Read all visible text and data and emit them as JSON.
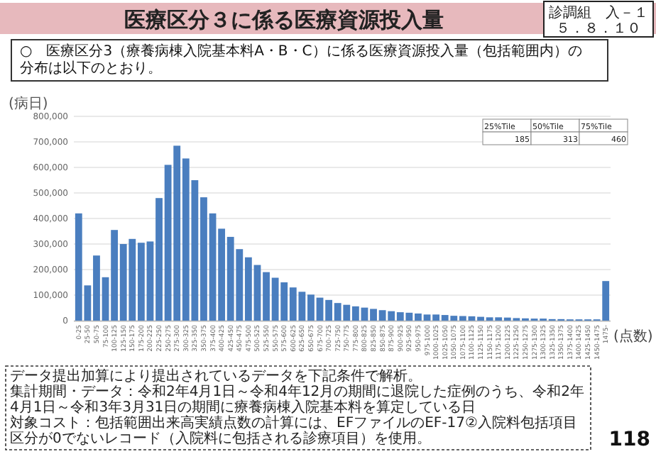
{
  "chart_data": {
    "type": "bar",
    "title": "医療区分３に係る医療資源投入量",
    "subtitle": "○　医療区分3（療養病棟入院基本料A・B・C）に係る医療資源投入量（包括範囲内）の分布は以下のとおり。",
    "ylabel": "(病日)",
    "xlabel": "(点数)",
    "categories": [
      "0-25",
      "25-50",
      "50-75",
      "75-100",
      "100-125",
      "125-150",
      "150-175",
      "175-200",
      "200-225",
      "225-250",
      "250-275",
      "275-300",
      "300-325",
      "325-350",
      "350-375",
      "375-400",
      "400-425",
      "425-450",
      "450-475",
      "475-500",
      "500-525",
      "525-550",
      "550-575",
      "575-600",
      "600-625",
      "625-650",
      "650-675",
      "675-700",
      "700-725",
      "725-750",
      "750-775",
      "775-800",
      "800-825",
      "825-850",
      "850-875",
      "875-900",
      "900-925",
      "925-950",
      "950-975",
      "975-1000",
      "1000-1025",
      "1025-1050",
      "1050-1075",
      "1075-1100",
      "1100-1125",
      "1125-1150",
      "1150-1175",
      "1175-1200",
      "1200-1225",
      "1225-1250",
      "1250-1275",
      "1275-1300",
      "1300-1325",
      "1325-1350",
      "1350-1375",
      "1375-1400",
      "1400-1425",
      "1425-1450",
      "1450-1475",
      "1475-"
    ],
    "values": [
      420000,
      138000,
      255000,
      170000,
      355000,
      300000,
      320000,
      305000,
      310000,
      480000,
      610000,
      685000,
      635000,
      550000,
      483000,
      420000,
      360000,
      328000,
      280000,
      248000,
      218000,
      190000,
      168000,
      150000,
      130000,
      113000,
      102000,
      90000,
      81000,
      69000,
      62000,
      56000,
      51000,
      46000,
      41000,
      37000,
      33000,
      31000,
      28000,
      24000,
      24000,
      22000,
      19000,
      18000,
      17000,
      15000,
      13000,
      13000,
      12000,
      10000,
      9000,
      8000,
      8000,
      6000,
      6000,
      5000,
      5000,
      5000,
      5000,
      155000
    ],
    "color": "#4a7ebf",
    "ylim": [
      0,
      800000
    ],
    "yticks": [
      0,
      {
        "value": 100000,
        "label": "100,000"
      },
      {
        "value": 200000,
        "label": "200,000"
      },
      {
        "value": 300000,
        "label": "300,000"
      },
      {
        "value": 400000,
        "label": "400,000"
      },
      {
        "value": 500000,
        "label": "500,000"
      },
      {
        "value": 600000,
        "label": "600,000"
      },
      {
        "value": 700000,
        "label": "700,000"
      },
      {
        "value": 800000,
        "label": "800,000"
      }
    ],
    "grid": "y",
    "annotations": [
      "25%Tile",
      "50%Tile",
      "75%Tile",
      "185",
      "313",
      "460",
      "診調組　入－１",
      "５．８．１０",
      "データ提出加算により提出されているデータを下記条件で解析。",
      "集計期間・データ：令和2年4月1日～令和4年12月の期間に退院した症例のうち、令和2年4月1日～令和3年3月31日の期間に療養病棟入院基本料を算定している日",
      "対象コスト：包括範囲出来高実績点数の計算には、EFファイルのEF-17②入院料包括項目区分が0でないレコード（入院料に包括される診療項目）を使用。",
      "118"
    ]
  }
}
